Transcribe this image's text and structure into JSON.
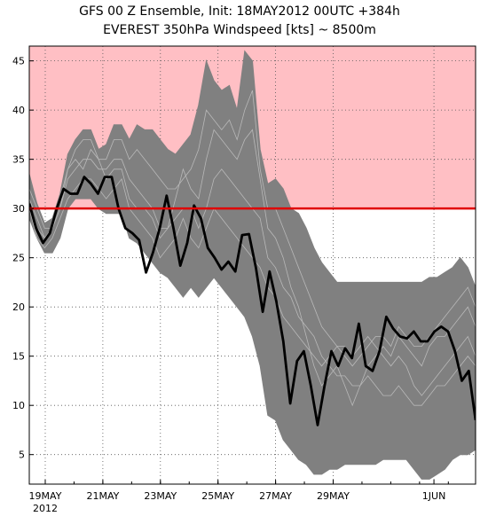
{
  "chart_data": {
    "type": "area",
    "title": "GFS 00 Z Ensemble, Init: 18MAY2012   00UTC +384h",
    "subtitle": "EVEREST 350hPa Windspeed [kts] ~ 8500m",
    "xlabel": "",
    "ylabel": "",
    "x_tick_labels": [
      "19MAY",
      "21MAY",
      "23MAY",
      "25MAY",
      "27MAY",
      "29MAY",
      "1JUN"
    ],
    "x_year_label": "2012",
    "y_ticks": [
      5,
      10,
      15,
      20,
      25,
      30,
      35,
      40,
      45
    ],
    "ylim": [
      2,
      46.5
    ],
    "x_days_range": [
      0,
      16
    ],
    "grid": true,
    "threshold": {
      "value": 30,
      "color": "#e00000",
      "fill_color": "#ffbfc4"
    },
    "colors": {
      "ensemble_fill": "#808080",
      "member_lines": "#b8b8b8",
      "control_line": "#000000"
    },
    "series": [
      {
        "role": "ensemble_max",
        "values": [
          33.5,
          30.5,
          28.5,
          29,
          31.5,
          35.5,
          37,
          38,
          38,
          36,
          36.5,
          38.5,
          38.5,
          37,
          38.5,
          38,
          38,
          37,
          36,
          35.5,
          36.5,
          37.5,
          40.5,
          45,
          43,
          42,
          42.5,
          40,
          46,
          45,
          36,
          32.5,
          33,
          32,
          30,
          29.5,
          28,
          26,
          24.5,
          23.5,
          22.5,
          22.5,
          22.5,
          22.5,
          22.5,
          22.5,
          22.5,
          22.5,
          22.5,
          22.5,
          22.5,
          22.5,
          23,
          23,
          23.5,
          24,
          25,
          24,
          22
        ]
      },
      {
        "role": "ensemble_min",
        "values": [
          29,
          27,
          25.5,
          25.5,
          27,
          30,
          31,
          31,
          31,
          30,
          29.5,
          29.5,
          29.5,
          27,
          26.5,
          25.5,
          24.5,
          23.5,
          23,
          22,
          21,
          22,
          21,
          22,
          23,
          22,
          21,
          20,
          19,
          17,
          14,
          9,
          8.5,
          6.5,
          5.5,
          4.5,
          4,
          3,
          3,
          3.5,
          3.5,
          4,
          4,
          4,
          4,
          4,
          4.5,
          4.5,
          4.5,
          4.5,
          3.5,
          2.5,
          2.5,
          3,
          3.5,
          4.5,
          5,
          5,
          5.5
        ]
      },
      {
        "role": "control",
        "values": [
          30.5,
          28,
          26.5,
          27.5,
          30,
          32,
          31.5,
          31.5,
          33.2,
          32.5,
          31.5,
          33.2,
          33.2,
          30,
          28,
          27.5,
          26.8,
          23.5,
          25.5,
          28,
          31.3,
          28,
          24.2,
          26.5,
          30.3,
          29,
          26,
          25,
          23.8,
          24.6,
          23.6,
          27.3,
          27.4,
          24,
          19.5,
          23.6,
          20.5,
          16.5,
          10.2,
          14.5,
          15.5,
          12,
          8,
          12,
          15.5,
          14,
          15.8,
          14.8,
          18.3,
          14,
          13.5,
          15.5,
          19,
          17.8,
          17,
          16.8,
          17.5,
          16.5,
          16.5,
          17.5,
          18,
          17.5,
          15.5,
          12.5,
          13.5,
          8.5
        ]
      }
    ],
    "member_lines": [
      [
        30,
        28,
        27,
        28,
        30,
        33,
        34,
        35,
        35,
        34,
        34,
        35,
        35,
        33,
        32,
        31,
        30,
        28,
        28,
        29,
        30,
        30,
        28,
        30,
        33,
        34,
        33,
        32,
        31,
        30,
        29,
        25,
        24,
        22,
        21,
        19,
        18,
        17,
        15,
        14,
        13,
        13,
        12,
        12,
        13,
        12,
        11,
        11,
        12,
        11,
        10,
        10,
        11,
        12,
        12,
        13,
        14,
        15,
        14
      ],
      [
        31,
        29,
        27,
        28,
        31,
        34,
        35,
        34,
        36,
        35,
        33,
        34,
        34,
        31,
        30,
        30,
        29,
        27,
        28,
        31,
        34,
        32,
        31,
        35,
        38,
        37,
        36,
        35,
        37,
        38,
        33,
        28,
        27,
        25,
        22,
        20,
        17,
        14,
        12,
        13,
        14,
        12,
        10,
        12,
        14,
        15,
        16,
        15,
        17,
        16,
        15,
        14,
        16,
        17,
        17,
        18,
        19,
        20,
        18
      ],
      [
        30,
        27,
        26,
        27,
        29,
        31,
        32,
        33,
        33,
        32,
        31,
        32,
        33,
        30,
        29,
        28,
        27,
        25,
        26,
        27,
        29,
        27,
        26,
        28,
        30,
        29,
        28,
        27,
        26,
        25,
        24,
        22,
        21,
        19,
        18,
        17,
        16,
        15,
        14,
        15,
        16,
        15,
        14,
        15,
        16,
        17,
        17,
        16,
        18,
        17,
        16,
        16,
        17,
        18,
        19,
        20,
        21,
        22,
        20
      ],
      [
        32,
        30,
        28,
        28,
        30,
        34,
        36,
        37,
        37,
        35,
        35,
        37,
        37,
        35,
        36,
        35,
        34,
        33,
        32,
        32,
        33,
        34,
        36,
        40,
        39,
        38,
        39,
        37,
        40,
        42,
        34,
        30,
        30,
        28,
        26,
        24,
        22,
        20,
        18,
        17,
        16,
        16,
        15,
        16,
        17,
        16,
        15,
        14,
        15,
        14,
        12,
        11,
        12,
        13,
        14,
        15,
        16,
        17,
        15
      ]
    ]
  }
}
